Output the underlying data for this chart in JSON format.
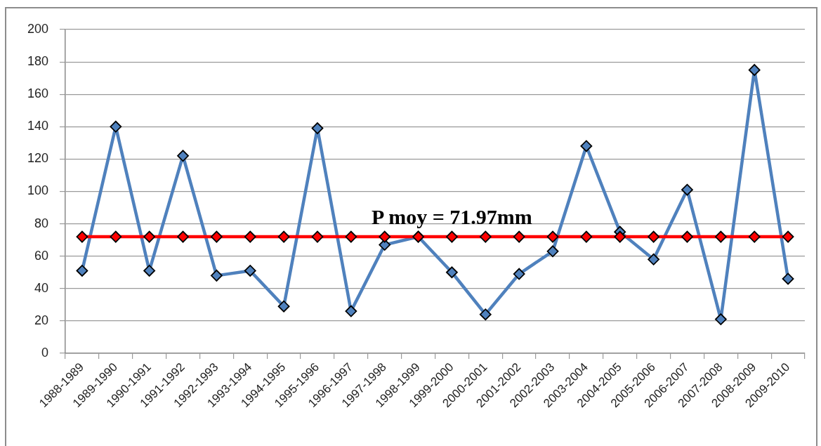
{
  "chart_data": {
    "type": "line",
    "categories": [
      "1988-1989",
      "1989-1990",
      "1990-1991",
      "1991-1992",
      "1992-1993",
      "1993-1994",
      "1994-1995",
      "1995-1996",
      "1996-1997",
      "1997-1998",
      "1998-1999",
      "1999-2000",
      "2000-2001",
      "2001-2002",
      "2002-2003",
      "2003-2004",
      "2004-2005",
      "2005-2006",
      "2006-2007",
      "2007-2008",
      "2008-2009",
      "2009-2010"
    ],
    "series": [
      {
        "color": "#4f81bd",
        "values": [
          51,
          140,
          51,
          122,
          48,
          51,
          29,
          139,
          26,
          67,
          72,
          50,
          24,
          49,
          63,
          128,
          75,
          58,
          101,
          21,
          175,
          46
        ]
      },
      {
        "color": "#ff0000",
        "values": [
          71.97,
          71.97,
          71.97,
          71.97,
          71.97,
          71.97,
          71.97,
          71.97,
          71.97,
          71.97,
          71.97,
          71.97,
          71.97,
          71.97,
          71.97,
          71.97,
          71.97,
          71.97,
          71.97,
          71.97,
          71.97,
          71.97
        ]
      }
    ],
    "ylim": [
      0,
      200
    ],
    "yticks": [
      0,
      20,
      40,
      60,
      80,
      100,
      120,
      140,
      160,
      180,
      200
    ],
    "grid": "y",
    "legend": false,
    "marker": "diamond",
    "line_style": "solid",
    "annotations": [
      {
        "text": "P moy = 71.97mm",
        "x": "1999-2000",
        "y": 71.97
      }
    ]
  }
}
